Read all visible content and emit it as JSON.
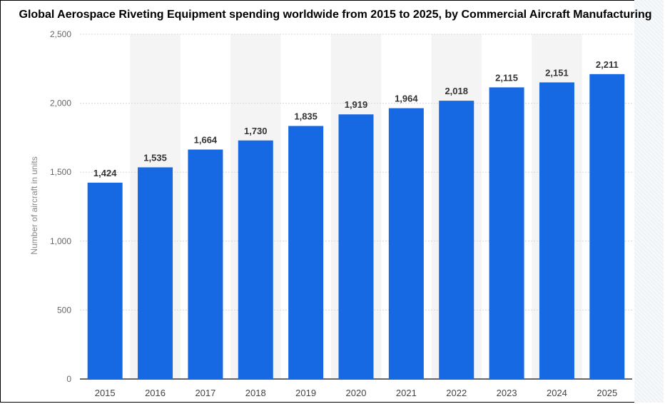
{
  "chart_data": {
    "type": "bar",
    "title": "Global Aerospace Riveting Equipment spending worldwide from 2015 to 2025, by Commercial Aircraft Manufacturing",
    "xlabel": "",
    "ylabel": "Number of aircraft in units",
    "categories": [
      "2015",
      "2016",
      "2017",
      "2018",
      "2019",
      "2020",
      "2021",
      "2022",
      "2023",
      "2024",
      "2025"
    ],
    "values": [
      1424,
      1535,
      1664,
      1730,
      1835,
      1919,
      1964,
      2018,
      2115,
      2151,
      2211
    ],
    "value_labels": [
      "1,424",
      "1,535",
      "1,664",
      "1,730",
      "1,835",
      "1,919",
      "1,964",
      "2,018",
      "2,115",
      "2,151",
      "2,211"
    ],
    "ylim": [
      0,
      2500
    ],
    "yticks": [
      0,
      500,
      1000,
      1500,
      2000,
      2500
    ],
    "ytick_labels": [
      "0",
      "500",
      "1,000",
      "1,500",
      "2,000",
      "2,500"
    ],
    "grid": true,
    "alternating_column_shading": true,
    "legend": "none",
    "colors": {
      "bar": "#1668e3",
      "shade": "#f4f4f4",
      "grid": "#d8d8d8"
    }
  }
}
